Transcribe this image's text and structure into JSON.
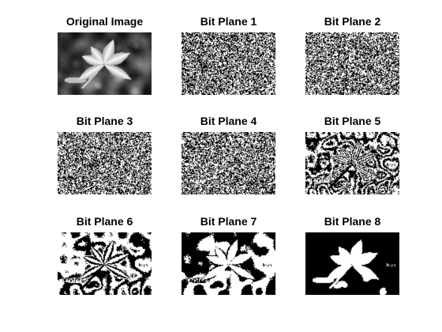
{
  "figure": {
    "panels": [
      {
        "title": "Original Image",
        "kind": "original"
      },
      {
        "title": "Bit Plane 1",
        "kind": "bitplane",
        "bit": 1
      },
      {
        "title": "Bit Plane 2",
        "kind": "bitplane",
        "bit": 2
      },
      {
        "title": "Bit Plane 3",
        "kind": "bitplane",
        "bit": 3
      },
      {
        "title": "Bit Plane 4",
        "kind": "bitplane",
        "bit": 4
      },
      {
        "title": "Bit Plane 5",
        "kind": "bitplane",
        "bit": 5
      },
      {
        "title": "Bit Plane 6",
        "kind": "bitplane",
        "bit": 6
      },
      {
        "title": "Bit Plane 7",
        "kind": "bitplane",
        "bit": 7
      },
      {
        "title": "Bit Plane 8",
        "kind": "bitplane",
        "bit": 8
      }
    ]
  }
}
